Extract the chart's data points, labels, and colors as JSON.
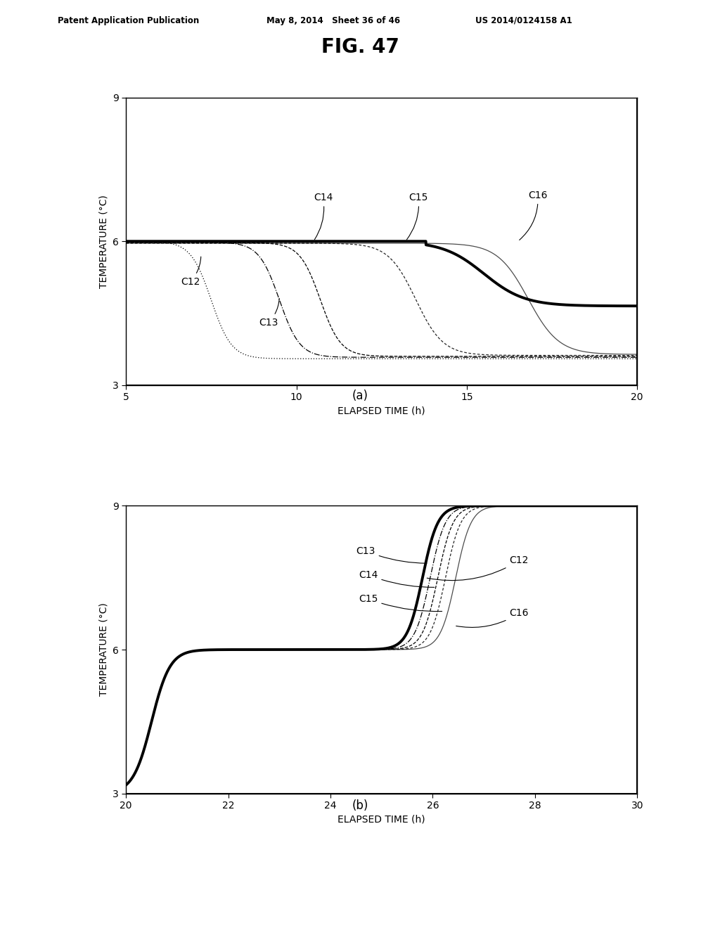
{
  "header_left": "Patent Application Publication",
  "header_mid": "May 8, 2014   Sheet 36 of 46",
  "header_right": "US 2014/0124158 A1",
  "fig_title": "FIG. 47",
  "subplot_a_label": "(a)",
  "subplot_b_label": "(b)",
  "ylabel": "TEMPERATURE (°C)",
  "xlabel": "ELAPSED TIME (h)",
  "a_xlim": [
    5,
    20
  ],
  "a_ylim": [
    3,
    9
  ],
  "a_yticks": [
    3,
    6,
    9
  ],
  "a_xticks": [
    5,
    10,
    15,
    20
  ],
  "b_xlim": [
    20,
    30
  ],
  "b_ylim": [
    3,
    9
  ],
  "b_yticks": [
    3,
    6,
    9
  ],
  "b_xticks": [
    20,
    22,
    24,
    26,
    28,
    30
  ]
}
